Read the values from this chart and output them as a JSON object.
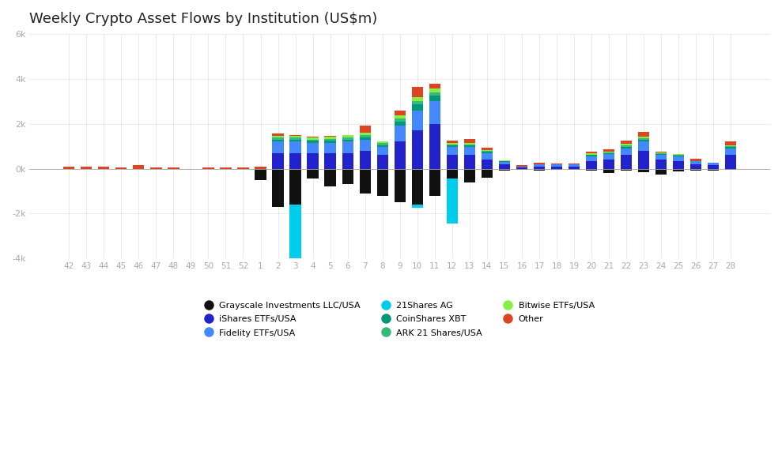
{
  "title": "Weekly Crypto Asset Flows by Institution (US$m)",
  "x_labels": [
    "42",
    "43",
    "44",
    "45",
    "46",
    "47",
    "48",
    "49",
    "50",
    "51",
    "52",
    "1",
    "2",
    "3",
    "4",
    "5",
    "6",
    "7",
    "8",
    "9",
    "10",
    "11",
    "12",
    "13",
    "14",
    "15",
    "16",
    "17",
    "18",
    "19",
    "20",
    "21",
    "22",
    "23",
    "24",
    "25",
    "26",
    "27",
    "28"
  ],
  "institutions": [
    "Grayscale Investments LLC/USA",
    "iShares ETFs/USA",
    "Fidelity ETFs/USA",
    "21Shares AG",
    "CoinShares XBT",
    "ARK 21 Shares/USA",
    "Bitwise ETFs/USA",
    "Other"
  ],
  "colors": [
    "#111111",
    "#2222cc",
    "#4488ff",
    "#00ccee",
    "#009977",
    "#33bb77",
    "#88ee44",
    "#dd4422"
  ],
  "ylim": [
    -4000,
    6000
  ],
  "ytick_vals": [
    -4000,
    -2000,
    0,
    2000,
    4000,
    6000
  ],
  "ytick_labels": [
    "-4k",
    "-2k",
    "0k",
    "2k",
    "4k",
    "6k"
  ],
  "flows": {
    "Grayscale Investments LLC/USA": [
      0,
      0,
      0,
      0,
      0,
      0,
      0,
      0,
      0,
      0,
      0,
      -500,
      -1700,
      -1600,
      -450,
      -800,
      -700,
      -1100,
      -1200,
      -1500,
      -1600,
      -1200,
      -450,
      -600,
      -400,
      -100,
      -50,
      -100,
      -50,
      -50,
      -100,
      -200,
      -100,
      -150,
      -250,
      -130,
      -100,
      -100,
      -50
    ],
    "iShares ETFs/USA": [
      0,
      0,
      0,
      0,
      0,
      0,
      0,
      0,
      0,
      0,
      0,
      0,
      700,
      700,
      700,
      700,
      700,
      800,
      600,
      1200,
      1700,
      2000,
      600,
      600,
      400,
      200,
      50,
      100,
      100,
      100,
      350,
      400,
      600,
      800,
      400,
      350,
      200,
      150,
      600
    ],
    "Fidelity ETFs/USA": [
      0,
      0,
      0,
      0,
      0,
      0,
      0,
      0,
      0,
      0,
      0,
      0,
      500,
      500,
      450,
      450,
      500,
      500,
      350,
      700,
      900,
      1000,
      350,
      350,
      300,
      100,
      50,
      80,
      80,
      80,
      200,
      250,
      300,
      400,
      200,
      200,
      150,
      100,
      300
    ],
    "21Shares AG": [
      0,
      0,
      0,
      0,
      0,
      0,
      0,
      0,
      0,
      0,
      0,
      0,
      0,
      -2500,
      0,
      0,
      0,
      0,
      0,
      0,
      -150,
      0,
      -2000,
      0,
      0,
      0,
      0,
      0,
      0,
      0,
      0,
      0,
      0,
      0,
      0,
      0,
      0,
      0,
      0
    ],
    "CoinShares XBT": [
      0,
      0,
      0,
      0,
      0,
      0,
      0,
      0,
      0,
      0,
      0,
      0,
      100,
      100,
      100,
      100,
      100,
      100,
      100,
      200,
      250,
      250,
      80,
      80,
      50,
      30,
      0,
      0,
      0,
      0,
      50,
      50,
      80,
      100,
      50,
      40,
      0,
      0,
      50
    ],
    "ARK 21 Shares/USA": [
      0,
      0,
      0,
      0,
      0,
      0,
      0,
      0,
      0,
      0,
      0,
      0,
      80,
      80,
      50,
      80,
      80,
      80,
      80,
      120,
      150,
      150,
      50,
      50,
      40,
      20,
      0,
      0,
      0,
      0,
      30,
      30,
      50,
      50,
      30,
      30,
      0,
      0,
      40
    ],
    "Bitwise ETFs/USA": [
      0,
      0,
      0,
      0,
      0,
      0,
      0,
      0,
      0,
      0,
      0,
      0,
      80,
      80,
      80,
      80,
      100,
      120,
      80,
      160,
      180,
      180,
      80,
      50,
      40,
      20,
      0,
      0,
      0,
      0,
      40,
      40,
      80,
      80,
      40,
      40,
      0,
      0,
      40
    ],
    "Other": [
      100,
      100,
      100,
      50,
      150,
      50,
      50,
      0,
      50,
      50,
      50,
      100,
      100,
      50,
      50,
      50,
      0,
      300,
      0,
      200,
      450,
      200,
      100,
      200,
      100,
      0,
      50,
      100,
      50,
      50,
      100,
      100,
      150,
      200,
      50,
      0,
      100,
      0,
      200
    ]
  }
}
